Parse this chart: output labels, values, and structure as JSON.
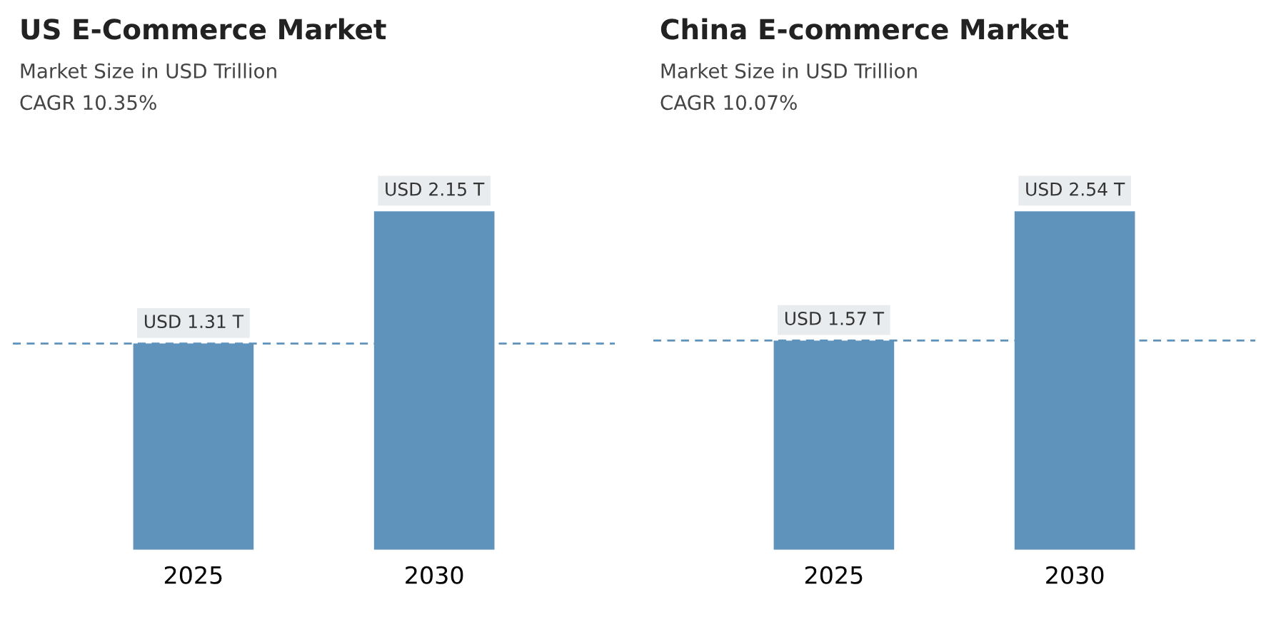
{
  "chart_data": [
    {
      "type": "bar",
      "title": "US E-Commerce Market",
      "subtitle": "Market Size in USD Trillion",
      "annotations": [
        "CAGR 10.35%"
      ],
      "categories": [
        "2025",
        "2030"
      ],
      "values": [
        1.31,
        2.15
      ],
      "value_labels": [
        "USD 1.31 T",
        "USD 2.15 T"
      ],
      "colors": [
        "#5f93bb",
        "#5f93bb"
      ],
      "ref_lines": [
        {
          "axis": "y",
          "value": 1.31,
          "color": "#5f93bb",
          "line_style": "dashed"
        }
      ],
      "tick_labels": "x",
      "grid": false,
      "legend": false
    },
    {
      "type": "bar",
      "title": "China E-commerce Market",
      "subtitle": "Market Size in USD Trillion",
      "annotations": [
        "CAGR 10.07%"
      ],
      "categories": [
        "2025",
        "2030"
      ],
      "values": [
        1.57,
        2.54
      ],
      "value_labels": [
        "USD 1.57 T",
        "USD 2.54 T"
      ],
      "colors": [
        "#5f93bb",
        "#5f93bb"
      ],
      "ref_lines": [
        {
          "axis": "y",
          "value": 1.57,
          "color": "#5f93bb",
          "line_style": "dashed"
        }
      ],
      "tick_labels": "x",
      "grid": false,
      "legend": false
    }
  ]
}
